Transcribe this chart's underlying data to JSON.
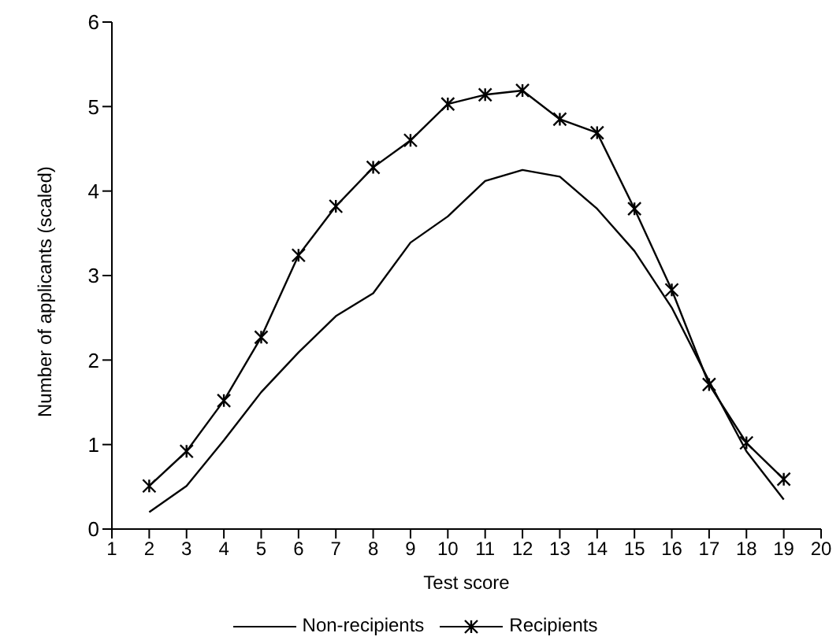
{
  "chart_data": {
    "type": "line",
    "xlabel": "Test score",
    "ylabel": "Number of applicants (scaled)",
    "x": [
      2,
      3,
      4,
      5,
      6,
      7,
      8,
      9,
      10,
      11,
      12,
      13,
      14,
      15,
      16,
      17,
      18,
      19
    ],
    "series": [
      {
        "name": "Non-recipients",
        "color": "#000000",
        "marker": "none",
        "values": [
          0.2,
          0.51,
          1.05,
          1.62,
          2.09,
          2.52,
          2.79,
          3.39,
          3.7,
          4.12,
          4.25,
          4.17,
          3.79,
          3.29,
          2.62,
          1.75,
          0.92,
          0.35
        ]
      },
      {
        "name": "Recipients",
        "color": "#000000",
        "marker": "cross",
        "values": [
          0.51,
          0.92,
          1.52,
          2.27,
          3.24,
          3.82,
          4.28,
          4.6,
          5.03,
          5.14,
          5.19,
          4.85,
          4.69,
          3.79,
          2.83,
          1.71,
          1.02,
          0.59
        ]
      }
    ],
    "xlim": [
      1,
      20
    ],
    "xticks": [
      1,
      2,
      3,
      4,
      5,
      6,
      7,
      8,
      9,
      10,
      11,
      12,
      13,
      14,
      15,
      16,
      17,
      18,
      19,
      20
    ],
    "ylim": [
      0,
      6
    ],
    "yticks": [
      0,
      1,
      2,
      3,
      4,
      5,
      6
    ],
    "grid": false,
    "legend": "bottom",
    "line_style": "solid"
  }
}
